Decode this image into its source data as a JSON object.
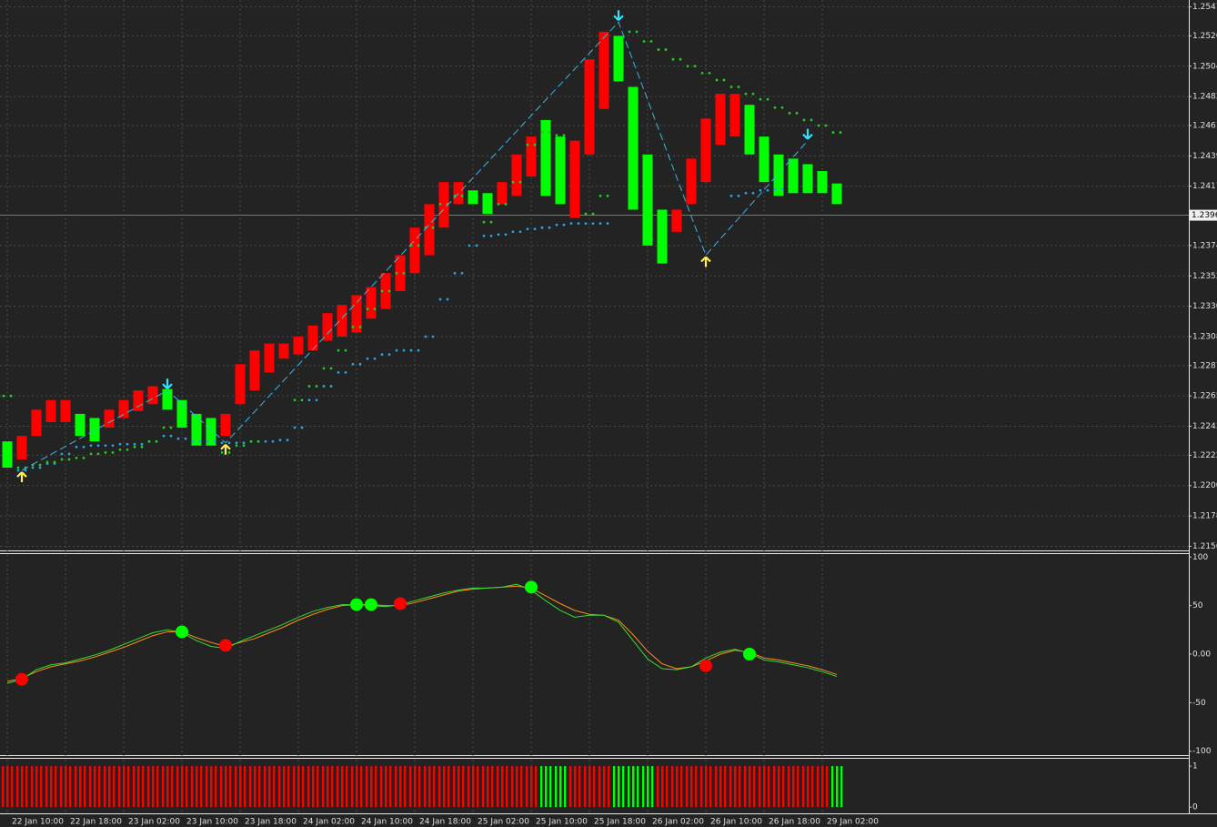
{
  "chart_data": [
    {
      "type": "bar",
      "grid": true,
      "ylim": [
        1.2153,
        1.2552
      ],
      "yticks": [
        1.2547,
        1.2526,
        1.2504,
        1.2482,
        1.2461,
        1.2439,
        1.2417,
        1.2374,
        1.2352,
        {
          "value": 1.233,
          "label": "1.2330"
        },
        1.2308,
        1.2287,
        1.2265,
        1.2243,
        1.2222,
        {
          "value": 1.22,
          "label": "1.2200"
        },
        1.2178,
        1.2156
      ],
      "last_price": 1.2396,
      "x_labels": [
        "22 Jan 10:00",
        "22 Jan 18:00",
        "23 Jan 02:00",
        "23 Jan 10:00",
        "23 Jan 18:00",
        "24 Jan 02:00",
        "24 Jan 10:00",
        "24 Jan 18:00",
        "25 Jan 02:00",
        "25 Jan 10:00",
        "25 Jan 18:00",
        "26 Jan 02:00",
        "26 Jan 10:00",
        "26 Jan 18:00",
        "29 Jan 02:00"
      ],
      "bars": {
        "tops": [
          1.2232,
          1.2236,
          1.2255,
          1.2262,
          1.2262,
          1.2252,
          1.2249,
          1.2255,
          1.2262,
          1.2269,
          1.2272,
          1.227,
          1.2262,
          1.2252,
          1.2249,
          1.2252,
          1.2288,
          1.2298,
          1.2303,
          1.2303,
          1.2308,
          1.2316,
          1.2325,
          1.2331,
          1.2338,
          1.2344,
          1.2354,
          1.2367,
          1.2387,
          1.2404,
          1.242,
          1.242,
          1.2414,
          1.2412,
          1.242,
          1.244,
          1.2453,
          1.2465,
          1.2453,
          1.245,
          1.2509,
          1.2529,
          1.2526,
          1.2489,
          1.244,
          1.24,
          1.24,
          1.2437,
          1.2466,
          1.2484,
          1.2484,
          1.2476,
          1.2453,
          1.244,
          1.2437,
          1.2433,
          1.2428,
          1.2419
        ],
        "bottoms": [
          1.2213,
          1.2219,
          1.2236,
          1.2246,
          1.2246,
          1.2236,
          1.2232,
          1.2242,
          1.2249,
          1.2254,
          1.2259,
          1.2255,
          1.2242,
          1.2229,
          1.2229,
          1.2236,
          1.2259,
          1.2269,
          1.2282,
          1.2292,
          1.2295,
          1.2298,
          1.2305,
          1.2308,
          1.2311,
          1.2321,
          1.2328,
          1.2341,
          1.2354,
          1.2367,
          1.2387,
          1.2404,
          1.2404,
          1.2397,
          1.2404,
          1.241,
          1.2424,
          1.241,
          1.2404,
          1.2394,
          1.244,
          1.2473,
          1.2493,
          1.24,
          1.2374,
          1.2361,
          1.2384,
          1.2404,
          1.242,
          1.2447,
          1.2453,
          1.244,
          1.242,
          1.241,
          1.2412,
          1.2412,
          1.2412,
          1.2404
        ],
        "colors": [
          "lime",
          "red",
          "red",
          "red",
          "red",
          "lime",
          "lime",
          "red",
          "red",
          "red",
          "red",
          "lime",
          "lime",
          "lime",
          "lime",
          "red",
          "red",
          "red",
          "red",
          "red",
          "red",
          "red",
          "red",
          "red",
          "red",
          "red",
          "red",
          "red",
          "red",
          "red",
          "red",
          "red",
          "lime",
          "lime",
          "red",
          "red",
          "red",
          "lime",
          "lime",
          "red",
          "red",
          "red",
          "lime",
          "lime",
          "lime",
          "lime",
          "red",
          "red",
          "red",
          "red",
          "red",
          "lime",
          "lime",
          "lime",
          "lime",
          "lime",
          "lime",
          "lime"
        ]
      },
      "dots": [
        {
          "color": "#29a3e0",
          "values": [
            null,
            1.2211,
            1.2213,
            1.2216,
            1.2223,
            1.2228,
            1.2229,
            1.2229,
            1.223,
            1.223,
            1.2232,
            1.2236,
            1.2234,
            1.2232,
            1.2232,
            1.2231,
            1.2231,
            1.2232,
            1.2232,
            1.2233,
            1.2242,
            1.2262,
            1.2272,
            1.2282,
            1.2288,
            1.2292,
            1.2295,
            1.2298,
            1.2298,
            1.2308,
            1.2335,
            1.2354,
            1.2374,
            1.2381,
            1.2382,
            1.2384,
            1.2386,
            1.2387,
            1.2389,
            1.239,
            1.239,
            1.239,
            null,
            null,
            null,
            null,
            null,
            null,
            null,
            null,
            1.241,
            1.2412,
            1.2414,
            1.2415,
            null,
            null,
            null,
            null
          ]
        },
        {
          "color": "#22cc22",
          "values": [
            1.2265,
            1.2213,
            1.2215,
            1.2217,
            1.2219,
            1.222,
            1.2223,
            1.2224,
            1.2226,
            1.2228,
            1.2232,
            1.2242,
            null,
            null,
            null,
            1.2224,
            1.2229,
            1.2232,
            null,
            null,
            1.2262,
            1.2272,
            1.2285,
            1.2298,
            1.2315,
            1.2328,
            1.2341,
            1.2354,
            1.2374,
            1.2387,
            1.2404,
            1.241,
            null,
            1.2391,
            1.2404,
            1.242,
            1.2447,
            1.2456,
            1.2454,
            null,
            1.2397,
            1.241,
            null,
            1.2529,
            1.2522,
            1.2516,
            1.2509,
            1.2504,
            1.2499,
            1.2494,
            1.2489,
            1.2484,
            1.248,
            1.2474,
            1.247,
            1.2465,
            1.2461,
            1.2456
          ]
        }
      ],
      "zigzag": {
        "color": "#3bb6e6",
        "index": [
          1,
          11,
          15,
          42,
          48,
          55
        ],
        "values": [
          1.2211,
          1.2269,
          1.2231,
          1.2536,
          1.2367,
          1.245
        ]
      }
    },
    {
      "type": "line",
      "ylim": [
        -104,
        104
      ],
      "yticks": [
        100,
        50,
        {
          "value": 0,
          "label": "0.00"
        },
        -50,
        -100
      ],
      "series": [
        {
          "color": "#ff8c1a",
          "values": [
            -28,
            -25,
            -18,
            -13,
            -10,
            -7,
            -3,
            2,
            7,
            13,
            19,
            23,
            23,
            17,
            12,
            8,
            12,
            16,
            22,
            28,
            35,
            41,
            46,
            50,
            51,
            51,
            50,
            50,
            53,
            57,
            61,
            65,
            67,
            68,
            69,
            70,
            68,
            60,
            52,
            45,
            41,
            40,
            35,
            20,
            3,
            -10,
            -15,
            -13,
            -7,
            0,
            4,
            2,
            -4,
            -6,
            -9,
            -12,
            -16,
            -21
          ]
        },
        {
          "color": "#33dd33",
          "values": [
            -30,
            -26,
            -16,
            -11,
            -9,
            -5,
            -1,
            4,
            10,
            16,
            22,
            25,
            22,
            14,
            8,
            6,
            13,
            19,
            25,
            31,
            38,
            44,
            48,
            51,
            51,
            50,
            49,
            51,
            55,
            59,
            63,
            66,
            68,
            68,
            69,
            72,
            66,
            55,
            45,
            38,
            40,
            40,
            33,
            14,
            -5,
            -15,
            -16,
            -13,
            -4,
            2,
            5,
            1,
            -6,
            -8,
            -11,
            -14,
            -18,
            -23
          ]
        }
      ],
      "signals": {
        "index": [
          1,
          12,
          15,
          24,
          25,
          27,
          36,
          48,
          51
        ],
        "values": [
          -26,
          23,
          9,
          51,
          51,
          52,
          69,
          -12,
          0
        ],
        "colors": [
          "red",
          "lime",
          "red",
          "lime",
          "lime",
          "red",
          "lime",
          "red",
          "lime"
        ]
      }
    },
    {
      "type": "histogram",
      "ylim": [
        -0.13,
        1.18
      ],
      "yticks": [
        1,
        0
      ],
      "values": [
        1,
        1,
        1,
        1,
        1,
        1,
        1,
        1,
        1,
        1,
        1,
        1,
        1,
        1,
        1,
        1,
        1,
        1,
        1,
        1,
        1,
        1,
        1,
        1,
        1,
        1,
        1,
        1,
        1,
        1,
        1,
        1,
        1,
        1,
        1,
        1,
        1,
        1,
        1,
        1,
        1,
        1,
        1,
        1,
        1,
        1,
        1,
        1,
        1,
        1,
        1,
        1,
        1,
        1,
        1,
        1,
        1,
        1
      ],
      "colors": [
        "red",
        "red",
        "red",
        "red",
        "red",
        "red",
        "red",
        "red",
        "red",
        "red",
        "red",
        "red",
        "red",
        "red",
        "red",
        "red",
        "red",
        "red",
        "red",
        "red",
        "red",
        "red",
        "red",
        "red",
        "red",
        "red",
        "red",
        "red",
        "red",
        "red",
        "red",
        "red",
        "red",
        "red",
        "red",
        "red",
        "red",
        "lime",
        "lime",
        "red",
        "red",
        "red",
        "lime",
        "lime",
        "lime",
        "red",
        "red",
        "red",
        "red",
        "red",
        "red",
        "red",
        "red",
        "red",
        "red",
        "red",
        "red",
        "lime"
      ]
    }
  ]
}
